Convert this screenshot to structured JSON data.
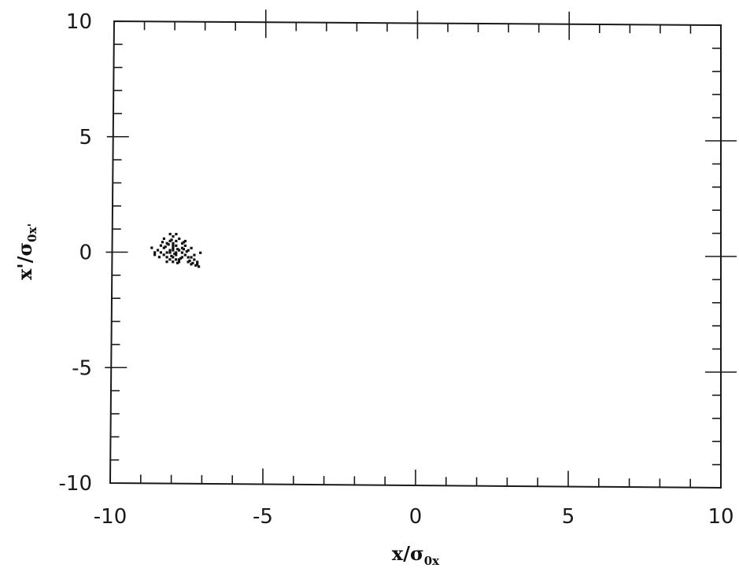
{
  "chart_data": {
    "type": "scatter",
    "xlabel": {
      "base": "x/σ",
      "sub": "0x"
    },
    "ylabel": {
      "base": "x'/σ",
      "sub": "0x'"
    },
    "xlim": [
      -10,
      10
    ],
    "ylim": [
      -10,
      10
    ],
    "x_ticks": [
      -10,
      -5,
      0,
      5,
      10
    ],
    "y_ticks": [
      -10,
      -5,
      0,
      5,
      10
    ],
    "x_tick_labels": [
      "-10",
      "-5",
      "0",
      "5",
      "10"
    ],
    "y_tick_labels": [
      "-10",
      "-5",
      "0",
      "5",
      "10"
    ],
    "grid": false,
    "series": [
      {
        "color": "#111111",
        "points": [
          [
            -8.1,
            0.1
          ],
          [
            -8.0,
            0.2
          ],
          [
            -7.9,
            -0.1
          ],
          [
            -8.2,
            0.0
          ],
          [
            -7.8,
            0.1
          ],
          [
            -8.0,
            -0.2
          ],
          [
            -8.3,
            0.2
          ],
          [
            -7.7,
            0.0
          ],
          [
            -8.1,
            -0.3
          ],
          [
            -7.9,
            0.3
          ],
          [
            -8.4,
            0.0
          ],
          [
            -7.6,
            -0.1
          ],
          [
            -8.0,
            0.4
          ],
          [
            -7.8,
            -0.3
          ],
          [
            -8.2,
            -0.2
          ],
          [
            -7.5,
            0.1
          ],
          [
            -8.5,
            0.1
          ],
          [
            -7.9,
            0.5
          ],
          [
            -8.1,
            0.5
          ],
          [
            -8.0,
            0.7
          ],
          [
            -7.7,
            0.4
          ],
          [
            -8.3,
            -0.1
          ],
          [
            -7.4,
            -0.2
          ],
          [
            -8.6,
            -0.1
          ],
          [
            -7.6,
            0.3
          ],
          [
            -8.2,
            0.4
          ],
          [
            -7.8,
            -0.4
          ],
          [
            -7.3,
            -0.3
          ],
          [
            -7.5,
            -0.4
          ],
          [
            -8.0,
            -0.4
          ],
          [
            -8.7,
            0.2
          ],
          [
            -7.7,
            -0.2
          ],
          [
            -7.9,
            0.0
          ],
          [
            -8.1,
            0.0
          ],
          [
            -7.2,
            -0.5
          ],
          [
            -7.4,
            0.2
          ],
          [
            -8.4,
            0.3
          ],
          [
            -7.6,
            0.5
          ],
          [
            -8.0,
            0.1
          ],
          [
            -7.85,
            0.15
          ],
          [
            -7.95,
            -0.05
          ],
          [
            -8.05,
            -0.15
          ],
          [
            -7.75,
            -0.25
          ],
          [
            -8.25,
            0.25
          ],
          [
            -7.65,
            0.15
          ],
          [
            -7.3,
            -0.1
          ],
          [
            -7.1,
            0.0
          ],
          [
            -8.3,
            0.6
          ],
          [
            -7.8,
            0.6
          ],
          [
            -7.5,
            -0.2
          ],
          [
            -8.6,
            0.0
          ],
          [
            -7.2,
            -0.4
          ],
          [
            -8.2,
            -0.4
          ],
          [
            -7.4,
            -0.5
          ],
          [
            -7.9,
            0.8
          ],
          [
            -8.1,
            0.8
          ],
          [
            -7.7,
            0.2
          ],
          [
            -8.0,
            0.3
          ],
          [
            -7.9,
            -0.3
          ],
          [
            -8.15,
            0.35
          ],
          [
            -7.55,
            0.05
          ],
          [
            -7.45,
            -0.35
          ],
          [
            -7.35,
            -0.45
          ],
          [
            -7.25,
            -0.55
          ],
          [
            -7.15,
            -0.6
          ],
          [
            -8.45,
            -0.2
          ],
          [
            -8.35,
            0.45
          ],
          [
            -7.65,
            0.45
          ],
          [
            -8.05,
            0.55
          ],
          [
            -7.85,
            -0.45
          ]
        ]
      }
    ]
  }
}
